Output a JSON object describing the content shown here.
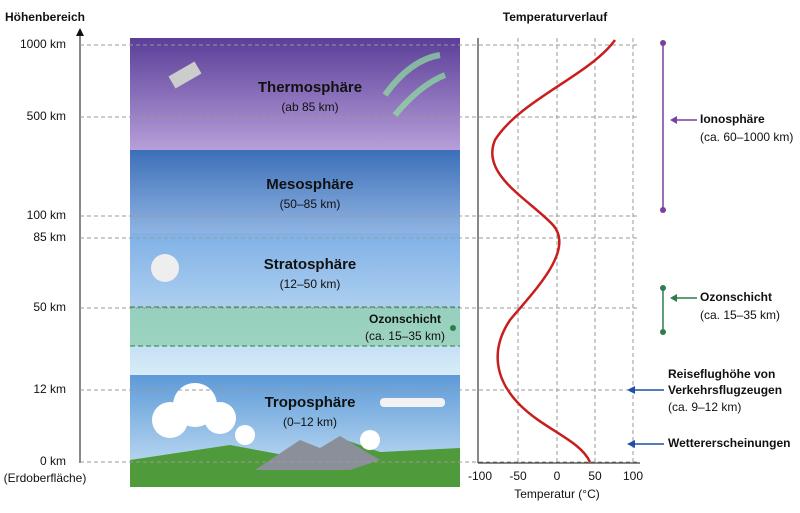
{
  "altitude_axis": {
    "title": "Höhenbereich",
    "ticks": [
      "1000 km",
      "500 km",
      "100 km",
      "85 km",
      "50 km",
      "12 km",
      "0 km"
    ],
    "ground_note": "(Erdoberfläche)"
  },
  "layers": [
    {
      "name": "Thermosphäre",
      "range": "(ab 85 km)"
    },
    {
      "name": "Mesosphäre",
      "range": "(50–85 km)"
    },
    {
      "name": "Stratosphäre",
      "range": "(12–50 km)"
    },
    {
      "name": "Ozonschicht",
      "range": "(ca. 15–35 km)"
    },
    {
      "name": "Troposphäre",
      "range": "(0–12 km)"
    }
  ],
  "temperature_chart": {
    "title": "Temperaturverlauf",
    "xticks": [
      "-100",
      "-50",
      "0",
      "50",
      "100"
    ],
    "xlabel": "Temperatur (°C)"
  },
  "annotations": [
    {
      "lines": [
        "Ionosphäre",
        "(ca. 60–1000 km)"
      ]
    },
    {
      "lines": [
        "Ozonschicht",
        "(ca. 15–35 km)"
      ]
    },
    {
      "lines": [
        "Reiseflughöhe von",
        "Verkehrsflugzeugen",
        "(ca. 9–12 km)"
      ]
    },
    {
      "lines": [
        "Wettererscheinungen"
      ]
    }
  ]
}
